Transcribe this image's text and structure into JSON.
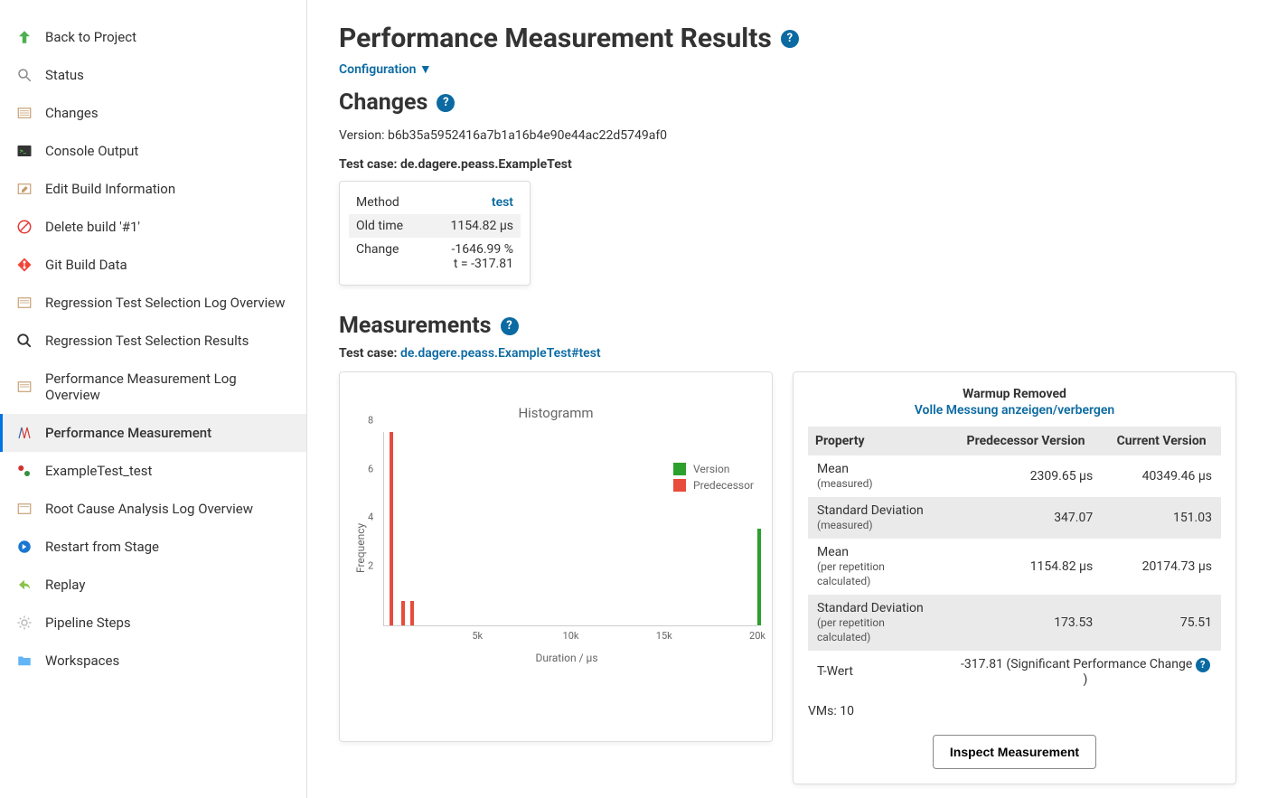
{
  "sidebar": {
    "items": [
      {
        "label": "Back to Project"
      },
      {
        "label": "Status"
      },
      {
        "label": "Changes"
      },
      {
        "label": "Console Output"
      },
      {
        "label": "Edit Build Information"
      },
      {
        "label": "Delete build '#1'"
      },
      {
        "label": "Git Build Data"
      },
      {
        "label": "Regression Test Selection Log Overview"
      },
      {
        "label": "Regression Test Selection Results"
      },
      {
        "label": "Performance Measurement Log Overview"
      },
      {
        "label": "Performance Measurement"
      },
      {
        "label": "ExampleTest_test"
      },
      {
        "label": "Root Cause Analysis Log Overview"
      },
      {
        "label": "Restart from Stage"
      },
      {
        "label": "Replay"
      },
      {
        "label": "Pipeline Steps"
      },
      {
        "label": "Workspaces"
      }
    ]
  },
  "page": {
    "title": "Performance Measurement Results",
    "configuration_label": "Configuration ▼",
    "changes_heading": "Changes",
    "version_label": "Version:",
    "version_hash": "b6b35a5952416a7b1a16b4e90e44ac22d5749af0",
    "testcase_label": "Test case:",
    "testcase": "de.dagere.peass.ExampleTest",
    "measurements_heading": "Measurements",
    "measurements_testcase": "de.dagere.peass.ExampleTest#test"
  },
  "changes_table": {
    "rows": [
      {
        "label": "Method",
        "value": "test",
        "is_link": true
      },
      {
        "label": "Old time",
        "value": "1154.82 µs"
      },
      {
        "label": "Change",
        "value": "-1646.99 %",
        "value2": "t = -317.81"
      }
    ]
  },
  "histogram": {
    "title": "Histogramm",
    "xlabel": "Duration / µs",
    "ylabel": "Frequency",
    "ylim": [
      0,
      8
    ],
    "yticks": [
      2,
      4,
      6,
      8
    ],
    "xlim": [
      0,
      20000
    ],
    "xticks": [
      {
        "v": 5000,
        "l": "5k"
      },
      {
        "v": 10000,
        "l": "10k"
      },
      {
        "v": 15000,
        "l": "15k"
      },
      {
        "v": 20000,
        "l": "20k"
      }
    ],
    "colors": {
      "version": "#2ca02c",
      "predecessor": "#e74c3c"
    },
    "legend": [
      {
        "label": "Version",
        "color": "#2ca02c"
      },
      {
        "label": "Predecessor",
        "color": "#e74c3c"
      }
    ],
    "bars": [
      {
        "x": 300,
        "y": 8,
        "color": "#e74c3c"
      },
      {
        "x": 900,
        "y": 1,
        "color": "#e74c3c"
      },
      {
        "x": 1400,
        "y": 1,
        "color": "#e74c3c"
      },
      {
        "x": 20000,
        "y": 4,
        "color": "#2ca02c"
      }
    ]
  },
  "stats": {
    "header": "Warmup Removed",
    "sublink": "Volle Messung anzeigen/verbergen",
    "columns": [
      "Property",
      "Predecessor Version",
      "Current Version"
    ],
    "rows": [
      {
        "prop": "Mean",
        "sub": "(measured)",
        "pred": "2309.65 µs",
        "curr": "40349.46 µs"
      },
      {
        "prop": "Standard Deviation",
        "sub": "(measured)",
        "pred": "347.07",
        "curr": "151.03"
      },
      {
        "prop": "Mean",
        "sub": "(per repetition calculated)",
        "pred": "1154.82 µs",
        "curr": "20174.73 µs"
      },
      {
        "prop": "Standard Deviation",
        "sub": "(per repetition calculated)",
        "pred": "173.53",
        "curr": "75.51"
      },
      {
        "prop": "T-Wert",
        "tvalue": "-317.81 (Significant Performance Change ",
        "help": true
      }
    ],
    "vms_label": "VMs:",
    "vms_value": "10",
    "inspect_label": "Inspect Measurement"
  }
}
